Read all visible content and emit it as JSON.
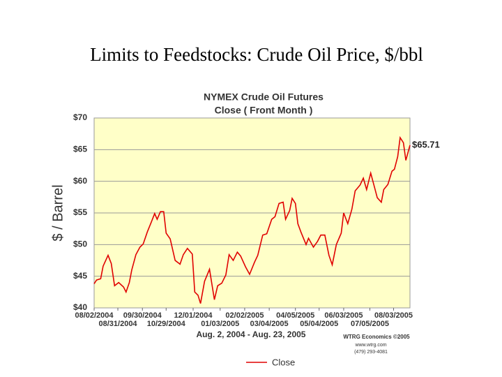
{
  "slide": {
    "title": "Limits to Feedstocks: Crude Oil Price, $/bbl"
  },
  "chart_data": {
    "type": "line",
    "title": "NYMEX Crude Oil Futures",
    "subtitle": "Close ( Front Month )",
    "y_label": "$ / Barrel",
    "x_label": "Aug. 2, 2004 - Aug. 23, 2005",
    "annotations": [
      "$65.71",
      "WTRG Economics ©2005",
      "www.wtrg.com",
      "(479) 293-4081"
    ],
    "x": [
      "2004-08-02",
      "2004-08-05",
      "2004-08-10",
      "2004-08-13",
      "2004-08-19",
      "2004-08-23",
      "2004-08-27",
      "2004-09-01",
      "2004-09-07",
      "2004-09-10",
      "2004-09-14",
      "2004-09-17",
      "2004-09-22",
      "2004-09-27",
      "2004-10-01",
      "2004-10-06",
      "2004-10-11",
      "2004-10-15",
      "2004-10-18",
      "2004-10-22",
      "2004-10-26",
      "2004-10-29",
      "2004-11-03",
      "2004-11-09",
      "2004-11-15",
      "2004-11-19",
      "2004-11-24",
      "2004-11-30",
      "2004-12-03",
      "2004-12-07",
      "2004-12-10",
      "2004-12-15",
      "2004-12-21",
      "2004-12-27",
      "2004-12-31",
      "2005-01-05",
      "2005-01-10",
      "2005-01-14",
      "2005-01-19",
      "2005-01-24",
      "2005-01-28",
      "2005-02-03",
      "2005-02-08",
      "2005-02-14",
      "2005-02-18",
      "2005-02-24",
      "2005-03-01",
      "2005-03-07",
      "2005-03-11",
      "2005-03-16",
      "2005-03-21",
      "2005-03-24",
      "2005-03-29",
      "2005-04-01",
      "2005-04-05",
      "2005-04-08",
      "2005-04-12",
      "2005-04-18",
      "2005-04-21",
      "2005-04-27",
      "2005-05-02",
      "2005-05-06",
      "2005-05-11",
      "2005-05-16",
      "2005-05-20",
      "2005-05-25",
      "2005-05-31",
      "2005-06-03",
      "2005-06-08",
      "2005-06-13",
      "2005-06-17",
      "2005-06-23",
      "2005-06-27",
      "2005-07-01",
      "2005-07-06",
      "2005-07-11",
      "2005-07-14",
      "2005-07-19",
      "2005-07-22",
      "2005-07-27",
      "2005-08-01",
      "2005-08-04",
      "2005-08-08",
      "2005-08-11",
      "2005-08-15",
      "2005-08-18",
      "2005-08-23"
    ],
    "series": [
      {
        "name": "Close",
        "color": "#e00000",
        "values": [
          43.8,
          44.4,
          44.6,
          46.6,
          48.3,
          47.0,
          43.5,
          44.0,
          43.3,
          42.5,
          44.0,
          46.0,
          48.4,
          49.6,
          50.1,
          52.0,
          53.6,
          54.9,
          54.0,
          55.2,
          55.2,
          51.8,
          50.9,
          47.5,
          46.9,
          48.4,
          49.4,
          48.5,
          42.5,
          42.0,
          40.7,
          44.2,
          46.1,
          41.3,
          43.5,
          43.9,
          45.2,
          48.4,
          47.5,
          48.8,
          48.2,
          46.5,
          45.3,
          47.2,
          48.3,
          51.5,
          51.7,
          54.0,
          54.4,
          56.5,
          56.7,
          54.0,
          55.4,
          57.3,
          56.5,
          53.3,
          51.9,
          50.0,
          51.0,
          49.6,
          50.5,
          51.5,
          51.5,
          48.3,
          46.8,
          50.0,
          51.8,
          55.0,
          53.3,
          55.6,
          58.5,
          59.4,
          60.5,
          58.7,
          61.3,
          58.9,
          57.4,
          56.7,
          58.7,
          59.5,
          61.6,
          61.9,
          63.9,
          66.9,
          66.1,
          63.3,
          65.71
        ]
      }
    ],
    "xlim": [
      "2004-08-02",
      "2005-08-23"
    ],
    "xticks": [
      {
        "value": "2004-08-02",
        "label": "08/02/2004"
      },
      {
        "value": "2004-08-31",
        "label": "08/31/2004"
      },
      {
        "value": "2004-09-30",
        "label": "09/30/2004"
      },
      {
        "value": "2004-10-29",
        "label": "10/29/2004"
      },
      {
        "value": "2004-12-01",
        "label": "12/01/2004"
      },
      {
        "value": "2005-01-03",
        "label": "01/03/2005"
      },
      {
        "value": "2005-02-02",
        "label": "02/02/2005"
      },
      {
        "value": "2005-03-04",
        "label": "03/04/2005"
      },
      {
        "value": "2005-04-05",
        "label": "04/05/2005"
      },
      {
        "value": "2005-05-04",
        "label": "05/04/2005"
      },
      {
        "value": "2005-06-03",
        "label": "06/03/2005"
      },
      {
        "value": "2005-07-05",
        "label": "07/05/2005"
      },
      {
        "value": "2005-08-03",
        "label": "08/03/2005"
      }
    ],
    "ylim": [
      40,
      70
    ],
    "yticks": [
      {
        "value": 40,
        "label": "$40"
      },
      {
        "value": 45,
        "label": "$45"
      },
      {
        "value": 50,
        "label": "$50"
      },
      {
        "value": 55,
        "label": "$55"
      },
      {
        "value": 60,
        "label": "$60"
      },
      {
        "value": 65,
        "label": "$65"
      },
      {
        "value": 70,
        "label": "$70"
      }
    ],
    "grid": true,
    "legend": "bottom"
  }
}
